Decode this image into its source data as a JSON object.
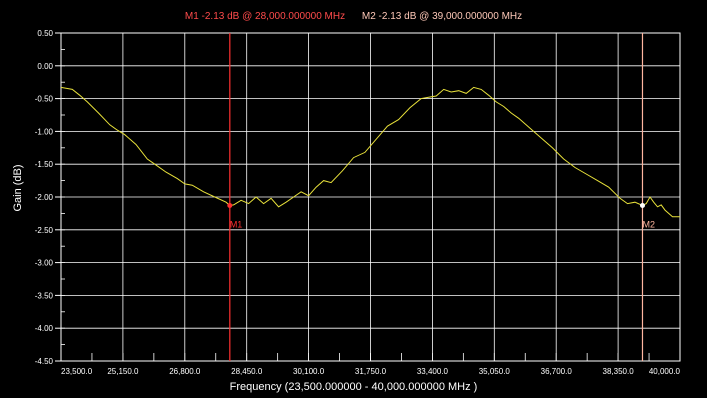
{
  "header": {
    "m1_text": "M1  -2.13 dB @ 28,000.000000 MHz",
    "m2_text": "M2  -2.13 dB @ 39,000.000000 MHz"
  },
  "colors": {
    "background": "#000000",
    "grid": "#ffffff",
    "trace": "#e8e13a",
    "marker_m1": "#ff3030",
    "marker_m2": "#ffb6a0"
  },
  "chart_data": {
    "type": "line",
    "title": "",
    "ylabel": "Gain (dB)",
    "xlabel": "Frequency (23,500.000000 - 40,000.000000 MHz )",
    "xlim": [
      23500,
      40000
    ],
    "ylim": [
      -4.5,
      0.5
    ],
    "grid": true,
    "x_ticks": [
      23500,
      25150,
      26800,
      28450,
      30100,
      31750,
      33400,
      35050,
      36700,
      38350,
      40000
    ],
    "x_tick_labels": [
      "23,500.0",
      "25,150.0",
      "26,800.0",
      "28,450.0",
      "30,100.0",
      "31,750.0",
      "33,400.0",
      "35,050.0",
      "36,700.0",
      "38,350.0",
      "40,000.0"
    ],
    "y_ticks": [
      0.5,
      0.0,
      -0.5,
      -1.0,
      -1.5,
      -2.0,
      -2.5,
      -3.0,
      -3.5,
      -4.0,
      -4.5
    ],
    "y_tick_labels": [
      "0.50",
      "0.00",
      "-0.50",
      "-1.00",
      "-1.50",
      "-2.00",
      "-2.50",
      "-3.00",
      "-3.50",
      "-4.00",
      "-4.50"
    ],
    "series": [
      {
        "x": [
          23500,
          23800,
          24000,
          24200,
          24500,
          24800,
          25000,
          25200,
          25500,
          25800,
          26000,
          26300,
          26600,
          26800,
          27000,
          27300,
          27600,
          27900,
          28000,
          28100,
          28300,
          28500,
          28700,
          28900,
          29100,
          29300,
          29500,
          29700,
          29900,
          30100,
          30300,
          30500,
          30700,
          31000,
          31300,
          31600,
          31900,
          32200,
          32500,
          32800,
          33100,
          33300,
          33500,
          33700,
          33900,
          34100,
          34300,
          34500,
          34700,
          34900,
          35100,
          35300,
          35500,
          35700,
          36000,
          36300,
          36600,
          36900,
          37200,
          37500,
          37800,
          38100,
          38400,
          38600,
          38800,
          39000,
          39100,
          39200,
          39300,
          39400,
          39500,
          39600,
          39800,
          40000
        ],
        "y": [
          -0.33,
          -0.36,
          -0.45,
          -0.55,
          -0.72,
          -0.9,
          -0.98,
          -1.05,
          -1.2,
          -1.42,
          -1.5,
          -1.62,
          -1.72,
          -1.8,
          -1.82,
          -1.92,
          -2.0,
          -2.08,
          -2.13,
          -2.12,
          -2.05,
          -2.1,
          -2.0,
          -2.1,
          -2.02,
          -2.15,
          -2.08,
          -2.0,
          -1.92,
          -1.98,
          -1.85,
          -1.75,
          -1.78,
          -1.6,
          -1.4,
          -1.32,
          -1.12,
          -0.92,
          -0.82,
          -0.64,
          -0.5,
          -0.48,
          -0.46,
          -0.36,
          -0.4,
          -0.38,
          -0.42,
          -0.33,
          -0.36,
          -0.45,
          -0.55,
          -0.62,
          -0.72,
          -0.8,
          -0.95,
          -1.1,
          -1.25,
          -1.42,
          -1.55,
          -1.65,
          -1.75,
          -1.85,
          -2.02,
          -2.1,
          -2.08,
          -2.13,
          -2.1,
          -2.0,
          -2.08,
          -2.15,
          -2.12,
          -2.2,
          -2.3,
          -2.3
        ]
      }
    ],
    "markers": [
      {
        "name": "M1",
        "x": 28000,
        "y": -2.13
      },
      {
        "name": "M2",
        "x": 39000,
        "y": -2.13
      }
    ]
  }
}
